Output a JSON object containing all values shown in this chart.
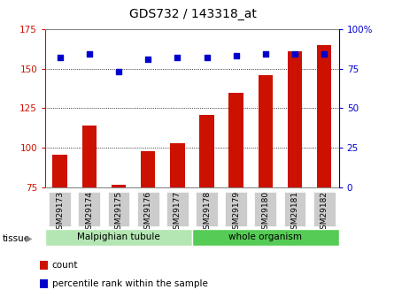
{
  "title": "GDS732 / 143318_at",
  "categories": [
    "GSM29173",
    "GSM29174",
    "GSM29175",
    "GSM29176",
    "GSM29177",
    "GSM29178",
    "GSM29179",
    "GSM29180",
    "GSM29181",
    "GSM29182"
  ],
  "counts": [
    96,
    114,
    77,
    98,
    103,
    121,
    135,
    146,
    161,
    165
  ],
  "percentiles": [
    82,
    84,
    73,
    81,
    82,
    82,
    83,
    84,
    84,
    84
  ],
  "ylim_left": [
    75,
    175
  ],
  "ylim_right": [
    0,
    100
  ],
  "yticks_left": [
    75,
    100,
    125,
    150,
    175
  ],
  "yticks_right": [
    0,
    25,
    50,
    75,
    100
  ],
  "bar_color": "#cc1100",
  "dot_color": "#0000cc",
  "bar_bottom": 75,
  "bar_width": 0.5,
  "tissue_groups": [
    {
      "label": "Malpighian tubule",
      "start": 0,
      "end": 5,
      "color": "#b3e6b3"
    },
    {
      "label": "whole organism",
      "start": 5,
      "end": 10,
      "color": "#55cc55"
    }
  ],
  "legend_items": [
    {
      "label": "count",
      "color": "#cc1100"
    },
    {
      "label": "percentile rank within the sample",
      "color": "#0000cc"
    }
  ],
  "tissue_label": "tissue",
  "grid_color": "#000000",
  "background_color": "#ffffff",
  "plot_bg": "#ffffff",
  "xtick_bg": "#cccccc",
  "border_color": "#888888"
}
